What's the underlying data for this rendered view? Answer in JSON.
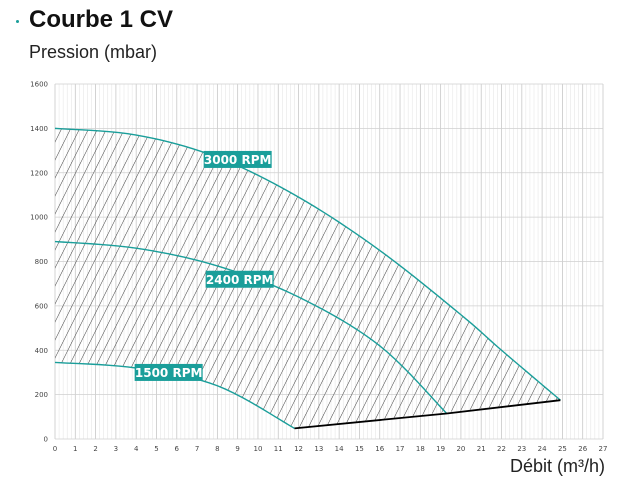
{
  "header": {
    "title": "Courbe 1 CV"
  },
  "chart_data": {
    "type": "line",
    "title": "Courbe 1 CV",
    "ylabel": "Pression (mbar)",
    "xlabel": "Débit (m³/h)",
    "xlim": [
      0,
      27
    ],
    "ylim": [
      0,
      1600
    ],
    "xticks": [
      0,
      1,
      2,
      3,
      4,
      5,
      6,
      7,
      8,
      9,
      10,
      11,
      12,
      13,
      14,
      15,
      16,
      17,
      18,
      19,
      20,
      21,
      22,
      23,
      24,
      25,
      26,
      27
    ],
    "yticks": [
      0,
      200,
      400,
      600,
      800,
      1000,
      1200,
      1400,
      1600
    ],
    "grid": true,
    "series": [
      {
        "name": "3000 RPM",
        "color": "#1a9e9a",
        "x": [
          0,
          4,
          8,
          12,
          16,
          20,
          22,
          24.9
        ],
        "y": [
          1400,
          1370,
          1270,
          1090,
          850,
          560,
          400,
          175
        ]
      },
      {
        "name": "2400 RPM",
        "color": "#1a9e9a",
        "x": [
          0,
          4,
          8,
          12,
          16,
          19.3
        ],
        "y": [
          890,
          860,
          780,
          640,
          420,
          115
        ]
      },
      {
        "name": "1500 RPM",
        "color": "#1a9e9a",
        "x": [
          0,
          4,
          8,
          11.8
        ],
        "y": [
          345,
          320,
          240,
          48
        ]
      }
    ],
    "limit_line": {
      "color": "#000000",
      "x": [
        11.8,
        19.3,
        24.9
      ],
      "y": [
        48,
        115,
        175
      ]
    },
    "label_positions": [
      [
        9,
        1260
      ],
      [
        9.1,
        720
      ],
      [
        5.6,
        300
      ]
    ],
    "hatched_region": true
  }
}
